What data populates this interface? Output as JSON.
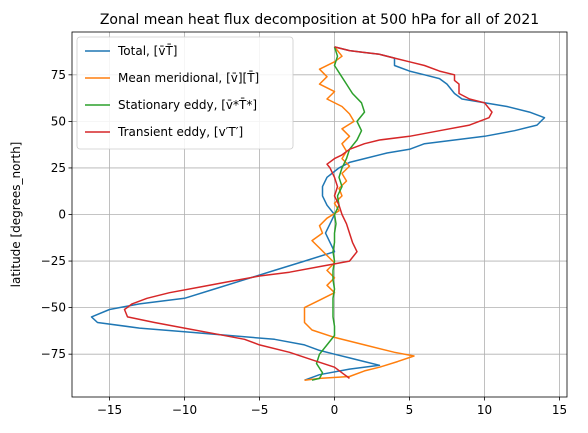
{
  "chart_data": {
    "type": "line",
    "title": "Zonal mean heat flux decomposition at 500 hPa for all of 2021",
    "xlabel": "",
    "ylabel": "latitude [degrees_north]",
    "xlim": [
      -17.5,
      15.5
    ],
    "ylim": [
      -98,
      98
    ],
    "xticks": [
      -15,
      -10,
      -5,
      0,
      5,
      10,
      15
    ],
    "xtick_labels": [
      "−15",
      "−10",
      "−5",
      "0",
      "5",
      "10",
      "15"
    ],
    "yticks": [
      -75,
      -50,
      -25,
      0,
      25,
      50,
      75
    ],
    "ytick_labels": [
      "−75",
      "−50",
      "−25",
      "0",
      "25",
      "50",
      "75"
    ],
    "grid": true,
    "legend_position": "top-left",
    "series": [
      {
        "name": "Total, [v̄T̄]",
        "color": "#1f77b4",
        "points": [
          [
            0,
            90
          ],
          [
            1,
            88
          ],
          [
            2,
            87
          ],
          [
            3,
            86
          ],
          [
            4,
            84
          ],
          [
            4,
            80
          ],
          [
            5,
            77
          ],
          [
            6,
            75
          ],
          [
            7,
            73
          ],
          [
            7.5,
            70
          ],
          [
            8,
            65
          ],
          [
            8.5,
            62
          ],
          [
            10,
            60
          ],
          [
            11.5,
            58
          ],
          [
            13,
            55
          ],
          [
            14,
            52
          ],
          [
            13.5,
            48
          ],
          [
            12,
            45
          ],
          [
            10,
            42
          ],
          [
            8,
            40
          ],
          [
            6,
            38
          ],
          [
            5,
            35
          ],
          [
            3.5,
            33
          ],
          [
            2,
            30
          ],
          [
            1,
            28
          ],
          [
            0.3,
            25
          ],
          [
            -0.5,
            20
          ],
          [
            -0.8,
            15
          ],
          [
            -0.8,
            10
          ],
          [
            -0.5,
            5
          ],
          [
            0,
            0
          ],
          [
            -0.3,
            -5
          ],
          [
            -0.6,
            -10
          ],
          [
            -0.3,
            -15
          ],
          [
            0,
            -20
          ],
          [
            -2,
            -25
          ],
          [
            -4,
            -30
          ],
          [
            -6,
            -35
          ],
          [
            -8,
            -40
          ],
          [
            -10,
            -45
          ],
          [
            -13,
            -48
          ],
          [
            -15,
            -51
          ],
          [
            -16.2,
            -55
          ],
          [
            -15.8,
            -58
          ],
          [
            -13,
            -61
          ],
          [
            -10,
            -63
          ],
          [
            -7,
            -65
          ],
          [
            -4,
            -67
          ],
          [
            -2,
            -70
          ],
          [
            -1,
            -73
          ],
          [
            0,
            -75
          ],
          [
            1,
            -77
          ],
          [
            2,
            -79
          ],
          [
            3,
            -81
          ],
          [
            1,
            -83
          ],
          [
            -1,
            -86
          ],
          [
            -2,
            -89
          ]
        ]
      },
      {
        "name": "Mean meridional, [v̄][T̄]",
        "color": "#ff7f0e",
        "points": [
          [
            0,
            90
          ],
          [
            0.5,
            85
          ],
          [
            0,
            82
          ],
          [
            -1,
            78
          ],
          [
            -0.5,
            74
          ],
          [
            -1,
            70
          ],
          [
            0,
            66
          ],
          [
            -0.5,
            62
          ],
          [
            0.5,
            58
          ],
          [
            1,
            54
          ],
          [
            1.3,
            50
          ],
          [
            0.5,
            46
          ],
          [
            1,
            42
          ],
          [
            0.5,
            38
          ],
          [
            0.8,
            34
          ],
          [
            0.5,
            30
          ],
          [
            1,
            26
          ],
          [
            0.5,
            22
          ],
          [
            0.8,
            18
          ],
          [
            0.3,
            14
          ],
          [
            0.5,
            10
          ],
          [
            0,
            6
          ],
          [
            0.3,
            2
          ],
          [
            -0.5,
            -2
          ],
          [
            -1,
            -6
          ],
          [
            -0.8,
            -10
          ],
          [
            -1.5,
            -14
          ],
          [
            -1,
            -18
          ],
          [
            -0.5,
            -22
          ],
          [
            0,
            -26
          ],
          [
            -0.5,
            -30
          ],
          [
            0,
            -34
          ],
          [
            -0.5,
            -38
          ],
          [
            0,
            -42
          ],
          [
            -1,
            -46
          ],
          [
            -2,
            -50
          ],
          [
            -2,
            -54
          ],
          [
            -2,
            -58
          ],
          [
            -1.5,
            -62
          ],
          [
            0,
            -66
          ],
          [
            2,
            -70
          ],
          [
            4,
            -74
          ],
          [
            5.3,
            -76
          ],
          [
            4.2,
            -79
          ],
          [
            3,
            -82
          ],
          [
            2,
            -84
          ],
          [
            1,
            -87
          ],
          [
            -1,
            -88
          ],
          [
            -2,
            -89
          ]
        ]
      },
      {
        "name": "Stationary eddy, [v̄*T̄*]",
        "color": "#2ca02c",
        "points": [
          [
            0,
            90
          ],
          [
            0.2,
            85
          ],
          [
            0,
            80
          ],
          [
            0.4,
            75
          ],
          [
            0.8,
            70
          ],
          [
            1.2,
            65
          ],
          [
            1.8,
            60
          ],
          [
            2,
            55
          ],
          [
            1.5,
            50
          ],
          [
            1.8,
            45
          ],
          [
            1.5,
            40
          ],
          [
            1,
            35
          ],
          [
            0.8,
            30
          ],
          [
            0.5,
            25
          ],
          [
            0.3,
            20
          ],
          [
            0.5,
            15
          ],
          [
            0.2,
            10
          ],
          [
            0.3,
            5
          ],
          [
            0,
            0
          ],
          [
            0.1,
            -5
          ],
          [
            0,
            -10
          ],
          [
            0,
            -15
          ],
          [
            -0.1,
            -20
          ],
          [
            0,
            -25
          ],
          [
            -0.1,
            -30
          ],
          [
            -0.1,
            -35
          ],
          [
            0,
            -40
          ],
          [
            -0.1,
            -45
          ],
          [
            -0.1,
            -50
          ],
          [
            -0.1,
            -55
          ],
          [
            0,
            -60
          ],
          [
            0,
            -65
          ],
          [
            -0.5,
            -70
          ],
          [
            -1,
            -75
          ],
          [
            -1.2,
            -80
          ],
          [
            -0.8,
            -85
          ],
          [
            -1,
            -88
          ],
          [
            -1.5,
            -89
          ]
        ]
      },
      {
        "name": "Transient eddy, [v′T′]",
        "color": "#d62728",
        "points": [
          [
            0,
            90
          ],
          [
            1,
            88
          ],
          [
            2,
            87
          ],
          [
            3,
            86
          ],
          [
            4,
            84
          ],
          [
            5,
            82
          ],
          [
            6,
            80
          ],
          [
            7,
            77
          ],
          [
            8,
            75
          ],
          [
            8,
            72
          ],
          [
            8.3,
            70
          ],
          [
            8.3,
            65
          ],
          [
            9,
            62
          ],
          [
            10,
            60
          ],
          [
            10.5,
            55
          ],
          [
            10.3,
            52
          ],
          [
            9,
            48
          ],
          [
            7,
            45
          ],
          [
            5,
            42
          ],
          [
            3,
            40
          ],
          [
            2,
            38
          ],
          [
            1,
            35
          ],
          [
            0.5,
            32
          ],
          [
            0,
            30
          ],
          [
            -0.5,
            27
          ],
          [
            -0.3,
            25
          ],
          [
            0,
            20
          ],
          [
            0.2,
            15
          ],
          [
            0,
            10
          ],
          [
            0.3,
            5
          ],
          [
            0.5,
            0
          ],
          [
            0.8,
            -5
          ],
          [
            1,
            -10
          ],
          [
            1.2,
            -15
          ],
          [
            1.5,
            -20
          ],
          [
            1,
            -25
          ],
          [
            -1,
            -28
          ],
          [
            -3,
            -31
          ],
          [
            -5,
            -33
          ],
          [
            -7,
            -36
          ],
          [
            -9,
            -39
          ],
          [
            -11,
            -42
          ],
          [
            -12.5,
            -45
          ],
          [
            -13.5,
            -48
          ],
          [
            -14,
            -51
          ],
          [
            -13.8,
            -55
          ],
          [
            -12,
            -58
          ],
          [
            -10,
            -61
          ],
          [
            -8,
            -64
          ],
          [
            -6,
            -67
          ],
          [
            -5,
            -70
          ],
          [
            -3,
            -74
          ],
          [
            -1.5,
            -78
          ],
          [
            0,
            -82
          ],
          [
            0.5,
            -85
          ],
          [
            1,
            -88
          ]
        ]
      }
    ]
  }
}
